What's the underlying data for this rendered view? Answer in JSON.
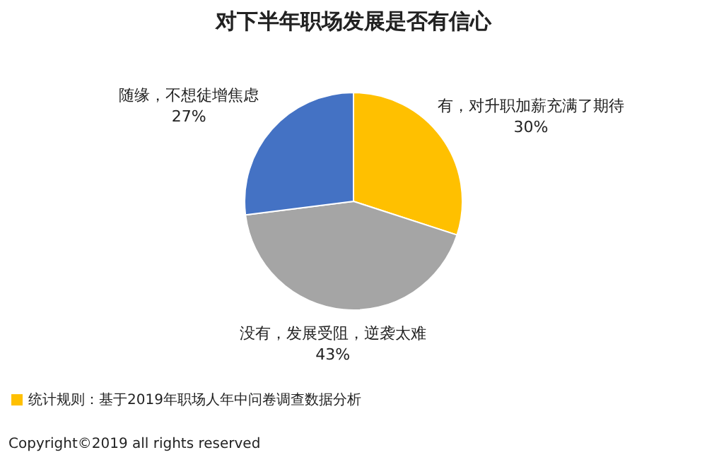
{
  "chart_data": {
    "type": "pie",
    "title": "对下半年职场发展是否有信心",
    "categories": [
      "有，对升职加薪充满了期待",
      "没有，发展受阻，逆袭太难",
      "随缘，不想徒增焦虑"
    ],
    "values": [
      30,
      43,
      27
    ],
    "colors": [
      "#ffc000",
      "#a5a5a5",
      "#4472c4"
    ],
    "value_labels": [
      "30%",
      "43%",
      "27%"
    ],
    "legend": false,
    "annotations": [
      "统计规则：基于2019年职场人年中问卷调查数据分析",
      "Copyright©2019 all rights reserved"
    ]
  }
}
